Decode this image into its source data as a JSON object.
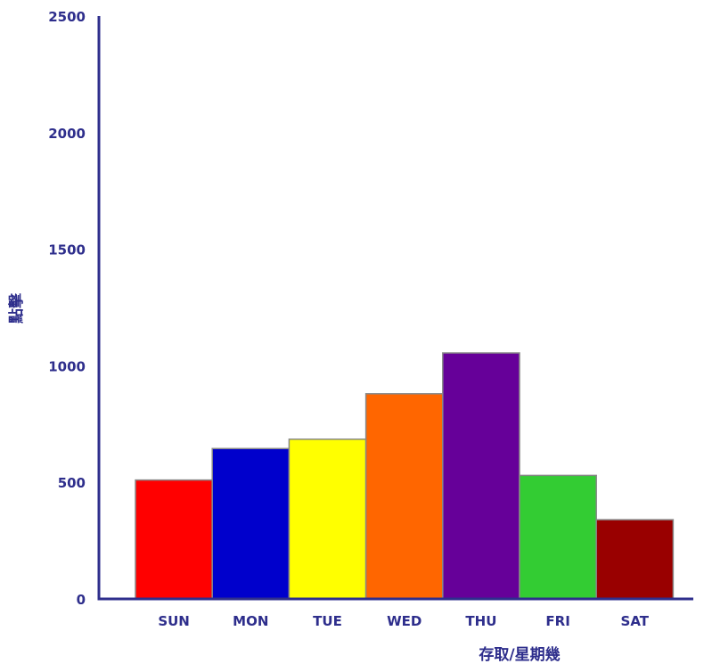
{
  "chart_data": {
    "type": "bar",
    "title": "",
    "xlabel": "存取/星期幾",
    "ylabel": "點擊",
    "categories": [
      "SUN",
      "MON",
      "TUE",
      "WED",
      "THU",
      "FRI",
      "SAT"
    ],
    "values": [
      510,
      645,
      685,
      880,
      1055,
      530,
      340
    ],
    "ylim": [
      0,
      2500
    ],
    "yticks": [
      0,
      500,
      1000,
      1500,
      2000,
      2500
    ],
    "ytick_labels": [
      "0",
      "500",
      "1000",
      "1500",
      "2000",
      "2500"
    ],
    "bar_colors": [
      "#ff0000",
      "#0000cc",
      "#ffff00",
      "#ff6600",
      "#660099",
      "#33cc33",
      "#990000"
    ],
    "axis_color": "#2e2e8c",
    "tick_label_color": "#2e2e8c",
    "bar_edge_color": "#888888",
    "grid": false,
    "legend": "none"
  }
}
